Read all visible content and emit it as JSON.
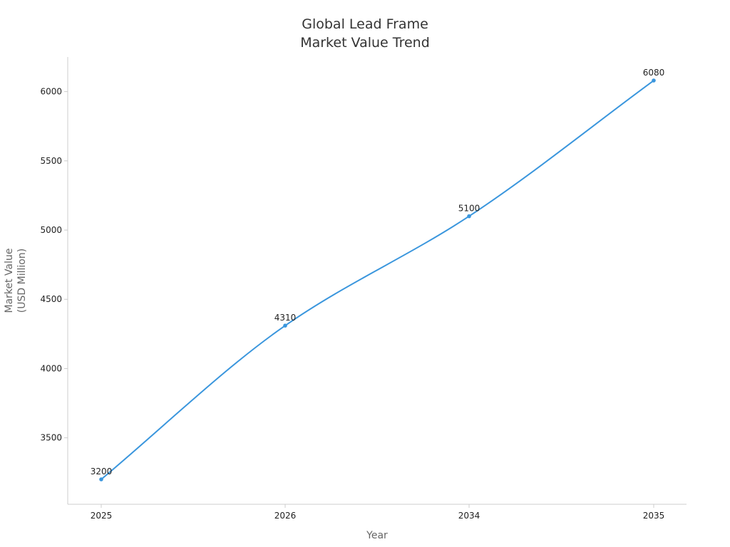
{
  "chart_data": {
    "type": "line",
    "title": [
      "Global Lead Frame",
      "Market Value Trend"
    ],
    "xlabel": "Year",
    "ylabel": [
      "Market Value",
      "(USD Million)"
    ],
    "categories": [
      "2025",
      "2026",
      "2034",
      "2035"
    ],
    "series": [
      {
        "values": [
          3200,
          4310,
          5100,
          6080
        ]
      }
    ],
    "data_labels": [
      "3200",
      "4310",
      "5100",
      "6080"
    ],
    "yticks": [
      3500,
      4000,
      4500,
      5000,
      5500,
      6000
    ],
    "ylim": [
      3020,
      6250
    ],
    "grid": false,
    "smooth": true,
    "color": "#3a96dd"
  }
}
